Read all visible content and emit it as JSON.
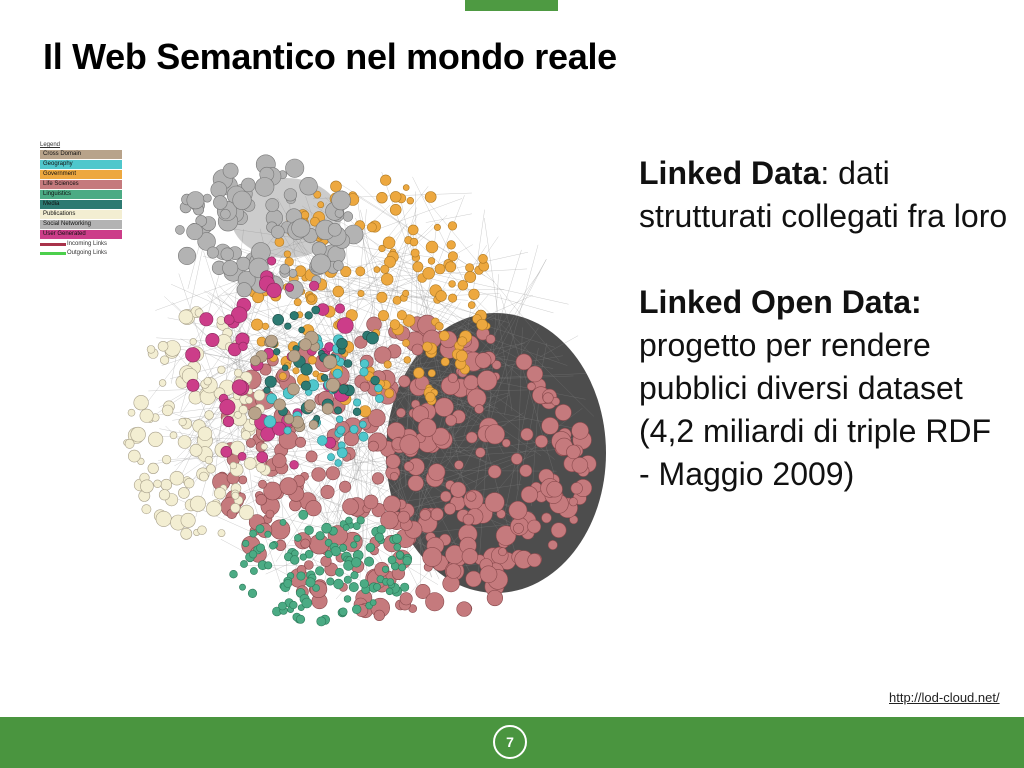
{
  "slide": {
    "title": "Il Web Semantico nel mondo reale",
    "page_number": "7",
    "source_link": "http://lod-cloud.net/"
  },
  "text": {
    "p1_bold": "Linked Data",
    "p1_rest": ": dati strutturati collegati fra loro",
    "p2_bold": "Linked Open Data:",
    "p2_rest": "progetto per rendere pubblici diversi dataset (4,2 miliardi di triple RDF - Maggio 2009)"
  },
  "legend": {
    "title": "Legend",
    "categories": [
      {
        "label": "Cross Domain",
        "color": "#b8a38a"
      },
      {
        "label": "Geography",
        "color": "#4fc7cc"
      },
      {
        "label": "Government",
        "color": "#eda83f"
      },
      {
        "label": "Life Sciences",
        "color": "#c57a7d"
      },
      {
        "label": "Linguistics",
        "color": "#4bab84"
      },
      {
        "label": "Media",
        "color": "#2d7a72"
      },
      {
        "label": "Publications",
        "color": "#f3eed2"
      },
      {
        "label": "Social Networking",
        "color": "#b3b3b3"
      },
      {
        "label": "User Generated",
        "color": "#cc3d89"
      }
    ],
    "links": [
      {
        "label": "Incoming Links",
        "color": "#a8324a"
      },
      {
        "label": "Outgoing Links",
        "color": "#4ccf4c"
      }
    ]
  },
  "colors": {
    "green_band": "#4a953f",
    "clusters": {
      "social": "#b3b3b3",
      "government": "#eda83f",
      "life_sciences": "#c57a7d",
      "publications": "#f3eed2",
      "linguistics": "#4bab84",
      "user_generated": "#cc3d89",
      "geography": "#4fc7cc",
      "media": "#2d7a72",
      "cross_domain": "#b8a38a"
    }
  }
}
